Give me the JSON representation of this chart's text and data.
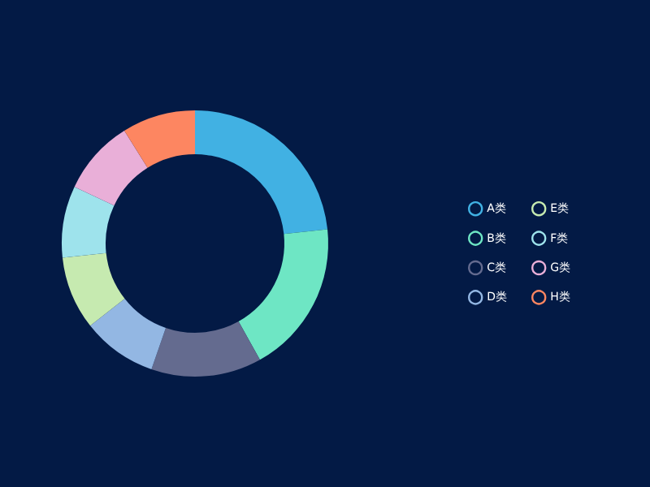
{
  "chart_data": {
    "type": "donut",
    "categories": [
      "A类",
      "B类",
      "C类",
      "D类",
      "E类",
      "F类",
      "G类",
      "H类"
    ],
    "values": [
      23.3,
      18.6,
      13.4,
      9.1,
      8.9,
      8.7,
      9.1,
      8.9
    ],
    "colors": [
      "#41b1e3",
      "#6ee6c4",
      "#646b8f",
      "#93b7e3",
      "#c6eab0",
      "#9ee3ec",
      "#e9afd8",
      "#fd8661"
    ],
    "legend": "right"
  }
}
